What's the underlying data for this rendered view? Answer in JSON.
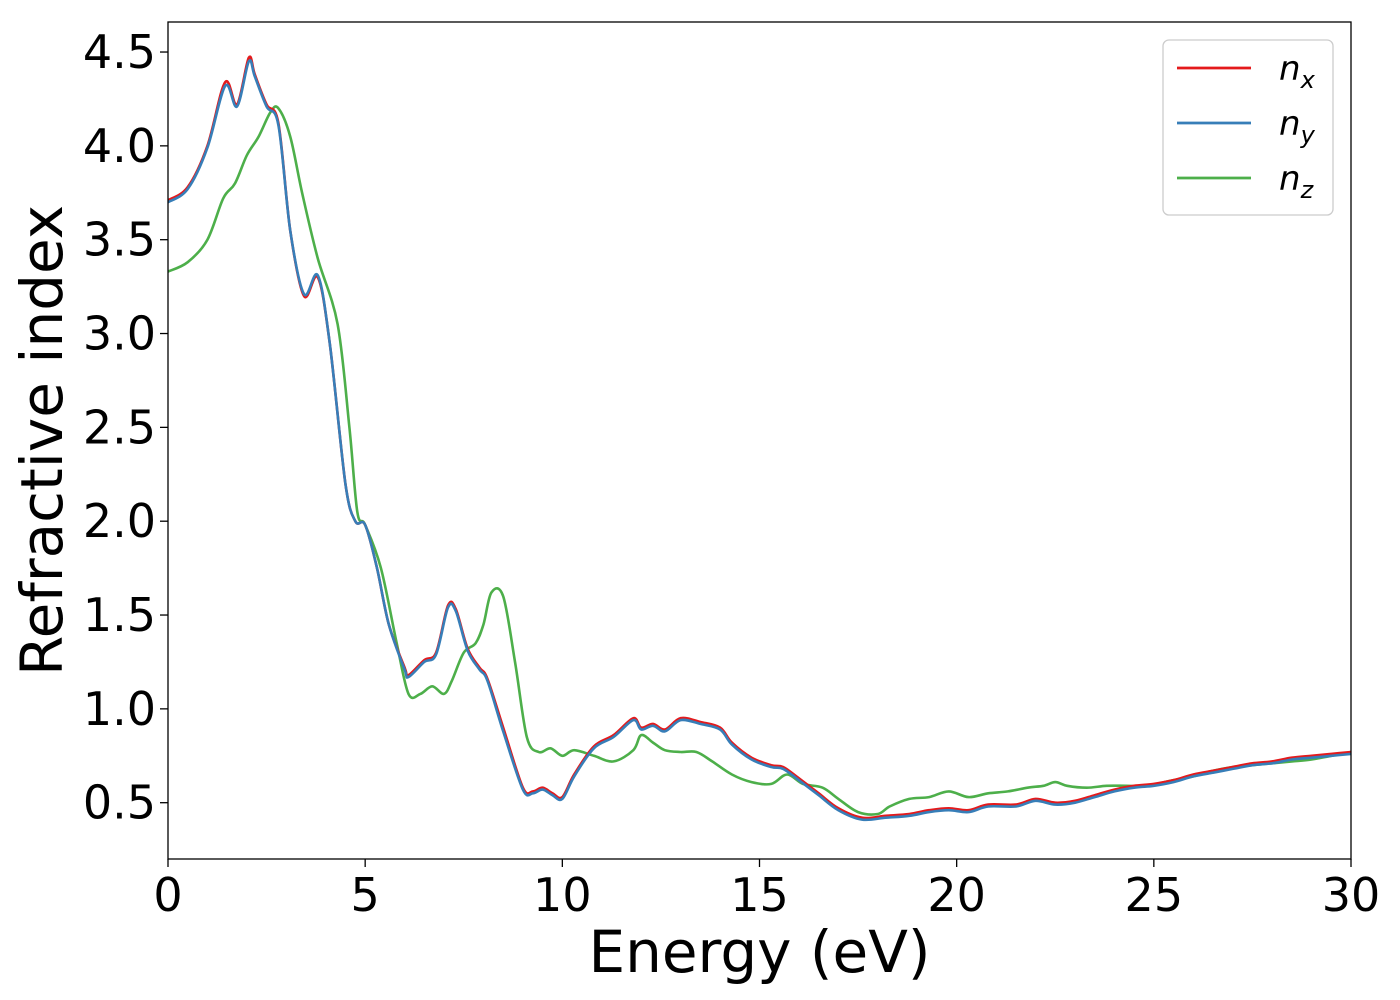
{
  "chart_data": {
    "type": "line",
    "xlabel": "Energy (eV)",
    "ylabel": "Refractive index",
    "xlim": [
      0,
      30
    ],
    "ylim": [
      0.2,
      4.66
    ],
    "xticks": [
      "0",
      "5",
      "10",
      "15",
      "20",
      "25",
      "30"
    ],
    "yticks": [
      "0.5",
      "1.0",
      "1.5",
      "2.0",
      "2.5",
      "3.0",
      "3.5",
      "4.0",
      "4.5"
    ],
    "grid": false,
    "legend": {
      "position": "top-right"
    },
    "series": [
      {
        "name": "n",
        "subscript": "x",
        "color": "#e41a1c",
        "x": [
          0,
          0.5,
          1.0,
          1.45,
          1.75,
          2.05,
          2.2,
          2.5,
          2.8,
          3.1,
          3.45,
          3.8,
          4.1,
          4.5,
          4.75,
          5.0,
          5.3,
          5.6,
          6.0,
          6.1,
          6.5,
          6.8,
          7.1,
          7.3,
          7.6,
          7.9,
          8.1,
          8.5,
          9.0,
          9.25,
          9.5,
          9.75,
          10.0,
          10.3,
          10.8,
          11.3,
          11.8,
          12.0,
          12.3,
          12.6,
          13.0,
          13.5,
          14.0,
          14.3,
          14.8,
          15.3,
          15.6,
          16.0,
          16.5,
          17.0,
          17.6,
          18.2,
          18.8,
          19.3,
          19.8,
          20.3,
          20.8,
          21.5,
          22.0,
          22.5,
          23.0,
          23.5,
          24.0,
          24.5,
          25.0,
          25.5,
          26.0,
          26.5,
          27.0,
          27.5,
          28.0,
          28.5,
          29.0,
          29.5,
          30.0
        ],
        "values": [
          3.71,
          3.78,
          4.0,
          4.34,
          4.22,
          4.47,
          4.38,
          4.22,
          4.12,
          3.55,
          3.2,
          3.3,
          2.95,
          2.2,
          2.0,
          1.98,
          1.75,
          1.45,
          1.22,
          1.18,
          1.26,
          1.3,
          1.55,
          1.53,
          1.32,
          1.22,
          1.16,
          0.9,
          0.58,
          0.56,
          0.58,
          0.55,
          0.53,
          0.65,
          0.8,
          0.86,
          0.95,
          0.9,
          0.92,
          0.89,
          0.95,
          0.93,
          0.9,
          0.82,
          0.74,
          0.7,
          0.69,
          0.63,
          0.55,
          0.47,
          0.42,
          0.43,
          0.44,
          0.46,
          0.47,
          0.46,
          0.49,
          0.49,
          0.52,
          0.5,
          0.51,
          0.54,
          0.57,
          0.59,
          0.6,
          0.62,
          0.65,
          0.67,
          0.69,
          0.71,
          0.72,
          0.74,
          0.75,
          0.76,
          0.77
        ]
      },
      {
        "name": "n",
        "subscript": "y",
        "color": "#377eb8",
        "x": [
          0,
          0.5,
          1.0,
          1.45,
          1.75,
          2.05,
          2.2,
          2.5,
          2.8,
          3.1,
          3.45,
          3.8,
          4.1,
          4.5,
          4.75,
          5.0,
          5.3,
          5.6,
          6.0,
          6.1,
          6.5,
          6.8,
          7.1,
          7.3,
          7.6,
          7.9,
          8.1,
          8.5,
          9.0,
          9.25,
          9.5,
          9.75,
          10.0,
          10.3,
          10.8,
          11.3,
          11.8,
          12.0,
          12.3,
          12.6,
          13.0,
          13.5,
          14.0,
          14.3,
          14.8,
          15.3,
          15.6,
          16.0,
          16.5,
          17.0,
          17.6,
          18.2,
          18.8,
          19.3,
          19.8,
          20.3,
          20.8,
          21.5,
          22.0,
          22.5,
          23.0,
          23.5,
          24.0,
          24.5,
          25.0,
          25.5,
          26.0,
          26.5,
          27.0,
          27.5,
          28.0,
          28.5,
          29.0,
          29.5,
          30.0
        ],
        "values": [
          3.7,
          3.77,
          3.99,
          4.32,
          4.21,
          4.45,
          4.37,
          4.21,
          4.11,
          3.55,
          3.21,
          3.31,
          2.95,
          2.2,
          2.0,
          1.98,
          1.75,
          1.45,
          1.21,
          1.17,
          1.25,
          1.29,
          1.54,
          1.52,
          1.31,
          1.21,
          1.15,
          0.88,
          0.57,
          0.55,
          0.57,
          0.54,
          0.52,
          0.64,
          0.79,
          0.85,
          0.94,
          0.89,
          0.91,
          0.88,
          0.94,
          0.92,
          0.89,
          0.81,
          0.73,
          0.69,
          0.68,
          0.62,
          0.54,
          0.46,
          0.41,
          0.42,
          0.43,
          0.45,
          0.46,
          0.45,
          0.48,
          0.48,
          0.51,
          0.49,
          0.5,
          0.53,
          0.56,
          0.58,
          0.59,
          0.61,
          0.64,
          0.66,
          0.68,
          0.7,
          0.71,
          0.73,
          0.74,
          0.75,
          0.76
        ]
      },
      {
        "name": "n",
        "subscript": "z",
        "color": "#4daf4a",
        "x": [
          0,
          0.5,
          1.0,
          1.4,
          1.7,
          2.0,
          2.3,
          2.6,
          2.8,
          3.1,
          3.4,
          3.8,
          4.3,
          4.6,
          4.8,
          5.0,
          5.4,
          5.8,
          6.1,
          6.4,
          6.7,
          7.0,
          7.2,
          7.5,
          7.8,
          8.0,
          8.2,
          8.5,
          8.8,
          9.1,
          9.4,
          9.7,
          10.0,
          10.3,
          10.8,
          11.3,
          11.8,
          12.0,
          12.3,
          12.6,
          13.0,
          13.4,
          13.8,
          14.3,
          14.8,
          15.3,
          15.7,
          16.1,
          16.6,
          17.0,
          17.5,
          18.0,
          18.3,
          18.8,
          19.3,
          19.8,
          20.3,
          20.8,
          21.3,
          21.8,
          22.2,
          22.5,
          22.8,
          23.3,
          23.8,
          24.3,
          24.8,
          25.5,
          26.0,
          26.5,
          27.0,
          27.5,
          28.0,
          28.5,
          29.0,
          29.5,
          30.0
        ],
        "values": [
          3.33,
          3.38,
          3.5,
          3.72,
          3.8,
          3.95,
          4.05,
          4.18,
          4.2,
          4.05,
          3.75,
          3.4,
          3.05,
          2.5,
          2.05,
          1.98,
          1.75,
          1.35,
          1.08,
          1.08,
          1.12,
          1.08,
          1.15,
          1.3,
          1.35,
          1.45,
          1.62,
          1.6,
          1.25,
          0.85,
          0.77,
          0.79,
          0.75,
          0.78,
          0.75,
          0.72,
          0.78,
          0.86,
          0.82,
          0.78,
          0.77,
          0.77,
          0.72,
          0.65,
          0.61,
          0.6,
          0.65,
          0.6,
          0.58,
          0.52,
          0.45,
          0.44,
          0.48,
          0.52,
          0.53,
          0.56,
          0.53,
          0.55,
          0.56,
          0.58,
          0.59,
          0.61,
          0.59,
          0.58,
          0.59,
          0.59,
          0.59,
          0.62,
          0.64,
          0.67,
          0.69,
          0.7,
          0.71,
          0.72,
          0.73,
          0.75,
          0.77
        ]
      }
    ]
  }
}
